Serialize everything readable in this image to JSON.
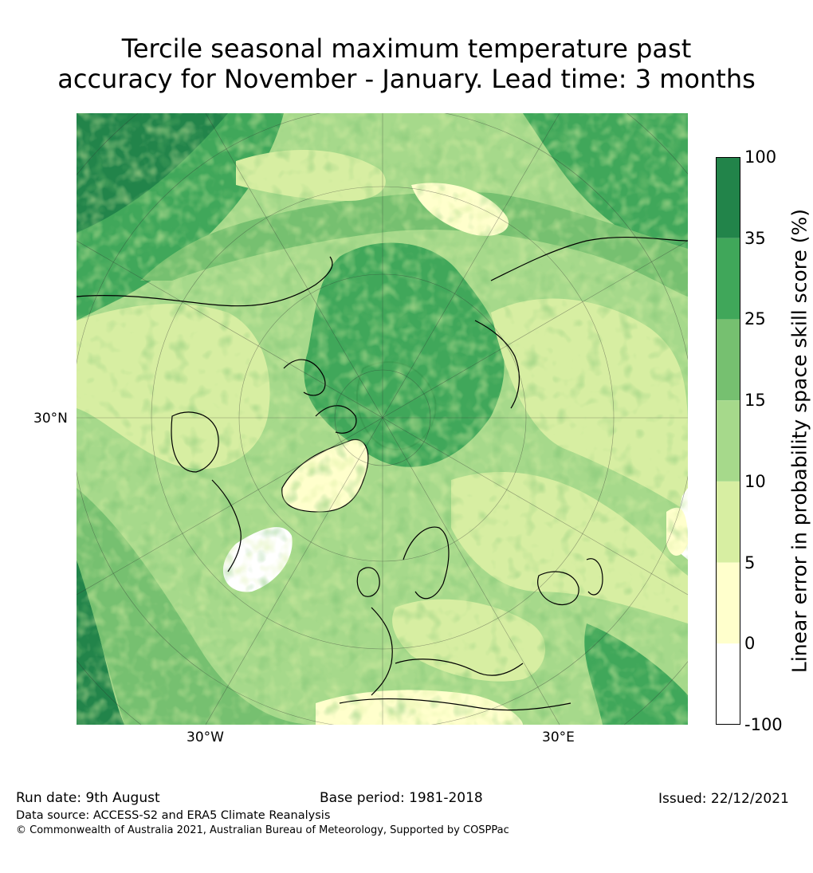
{
  "title": {
    "line1": "Tercile seasonal maximum temperature past",
    "line2": "accuracy for November - January. Lead time: 3 months"
  },
  "map": {
    "lat_label": "30°N",
    "lon_labels": [
      "30°W",
      "30°E"
    ]
  },
  "colorbar": {
    "label": "Linear error in probability space skill score (%)",
    "ticks": [
      "100",
      "35",
      "25",
      "15",
      "10",
      "5",
      "0",
      "-100"
    ],
    "colors": [
      "#22844a",
      "#40a75a",
      "#76c070",
      "#a6d98b",
      "#d7eea2",
      "#ffffcc",
      "#ffffff"
    ]
  },
  "footer": {
    "run_date": "Run date: 9th August",
    "base_period": "Base period: 1981-2018",
    "issued": "Issued: 22/12/2021",
    "data_source": "Data source: ACCESS-S2 and ERA5 Climate Reanalysis",
    "copyright": "© Commonwealth of Australia 2021, Australian Bureau of Meteorology, Supported by COSPPac"
  }
}
